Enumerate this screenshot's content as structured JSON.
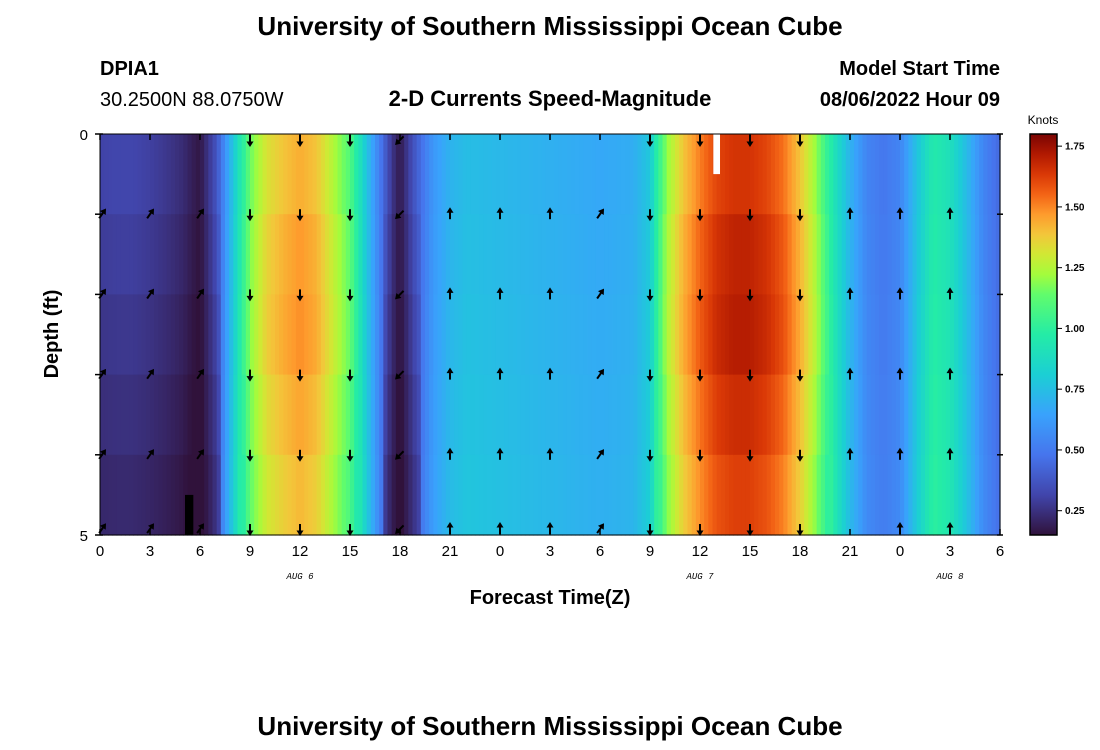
{
  "header": {
    "title": "University of Southern Mississippi Ocean Cube",
    "station_id": "DPIA1",
    "station_coords": "30.2500N  88.0750W",
    "plot_title": "2-D Currents Speed-Magnitude",
    "model_start_label": "Model Start Time",
    "model_start_value": "08/06/2022 Hour 09",
    "footer_title": "University of Southern Mississippi Ocean Cube"
  },
  "chart_data": {
    "type": "heatmap",
    "title": "2-D Currents Speed-Magnitude",
    "xlabel": "Forecast Time(Z)",
    "ylabel": "Depth (ft)",
    "x_hours": [
      0,
      3,
      6,
      9,
      12,
      15,
      18,
      21,
      24,
      27,
      30,
      33,
      36,
      39,
      42,
      45,
      48,
      51,
      54
    ],
    "x_tick_labels": [
      "0",
      "3",
      "6",
      "9",
      "12",
      "15",
      "18",
      "21",
      "0",
      "3",
      "6",
      "9",
      "12",
      "15",
      "18",
      "21",
      "0",
      "3",
      "6"
    ],
    "x_date_labels": [
      {
        "hour": 12,
        "label": "AUG 6"
      },
      {
        "hour": 36,
        "label": "AUG 7"
      },
      {
        "hour": 51,
        "label": "AUG 8"
      }
    ],
    "xlim": [
      0,
      54
    ],
    "y_ticks": [
      0,
      5
    ],
    "y_tick_labels": [
      "0",
      "5"
    ],
    "ylim": [
      0,
      5
    ],
    "colorbar": {
      "label": "Knots",
      "ticks": [
        0.25,
        0.5,
        0.75,
        1.0,
        1.25,
        1.5,
        1.75
      ],
      "tick_labels": [
        "0.25",
        "0.50",
        "0.75",
        "1.00",
        "1.25",
        "1.50",
        "1.75"
      ],
      "range": [
        0.15,
        1.8
      ]
    },
    "speed_profile_hours": [
      0,
      1,
      2,
      3,
      4,
      5,
      5.5,
      6,
      7,
      8,
      9,
      10,
      11,
      12,
      13,
      14,
      15,
      16,
      17,
      17.5,
      18,
      19,
      20,
      21,
      22,
      24,
      26,
      28,
      30,
      32,
      33,
      33.5,
      34,
      35,
      36,
      37,
      38,
      39,
      40,
      41,
      42,
      43,
      44,
      45,
      46,
      47,
      48,
      49,
      50,
      51,
      52,
      53,
      54
    ],
    "speed_profile_knots": [
      0.32,
      0.33,
      0.33,
      0.31,
      0.28,
      0.24,
      0.2,
      0.17,
      0.38,
      0.8,
      1.2,
      1.38,
      1.45,
      1.5,
      1.45,
      1.3,
      1.15,
      0.78,
      0.45,
      0.28,
      0.18,
      0.42,
      0.62,
      0.72,
      0.76,
      0.74,
      0.72,
      0.7,
      0.68,
      0.7,
      0.8,
      1.05,
      1.25,
      1.45,
      1.58,
      1.68,
      1.72,
      1.72,
      1.68,
      1.6,
      1.45,
      1.25,
      0.95,
      0.72,
      0.55,
      0.5,
      0.55,
      0.78,
      0.98,
      0.92,
      0.75,
      0.55,
      0.45
    ],
    "arrow_rows_depth_ft": [
      0,
      1,
      2,
      3,
      4,
      5
    ],
    "arrow_columns_hours": [
      0,
      3,
      6,
      9,
      12,
      15,
      18,
      21,
      24,
      27,
      30,
      33,
      36,
      39,
      42,
      45,
      48,
      51,
      54
    ],
    "arrow_directions": [
      "NE",
      "NE",
      "NE",
      "S",
      "S",
      "S",
      "SW",
      "N",
      "N",
      "N",
      "NE",
      "S",
      "S",
      "S",
      "S",
      "N",
      "N",
      "N",
      "N"
    ],
    "missing_cells": [
      {
        "hour_start": 36.8,
        "hour_end": 37.2,
        "depth_start": 0,
        "depth_end": 0.5,
        "color": "#ffffff"
      },
      {
        "hour_start": 5.1,
        "hour_end": 5.6,
        "depth_start": 4.5,
        "depth_end": 5,
        "color": "#000000"
      }
    ]
  }
}
